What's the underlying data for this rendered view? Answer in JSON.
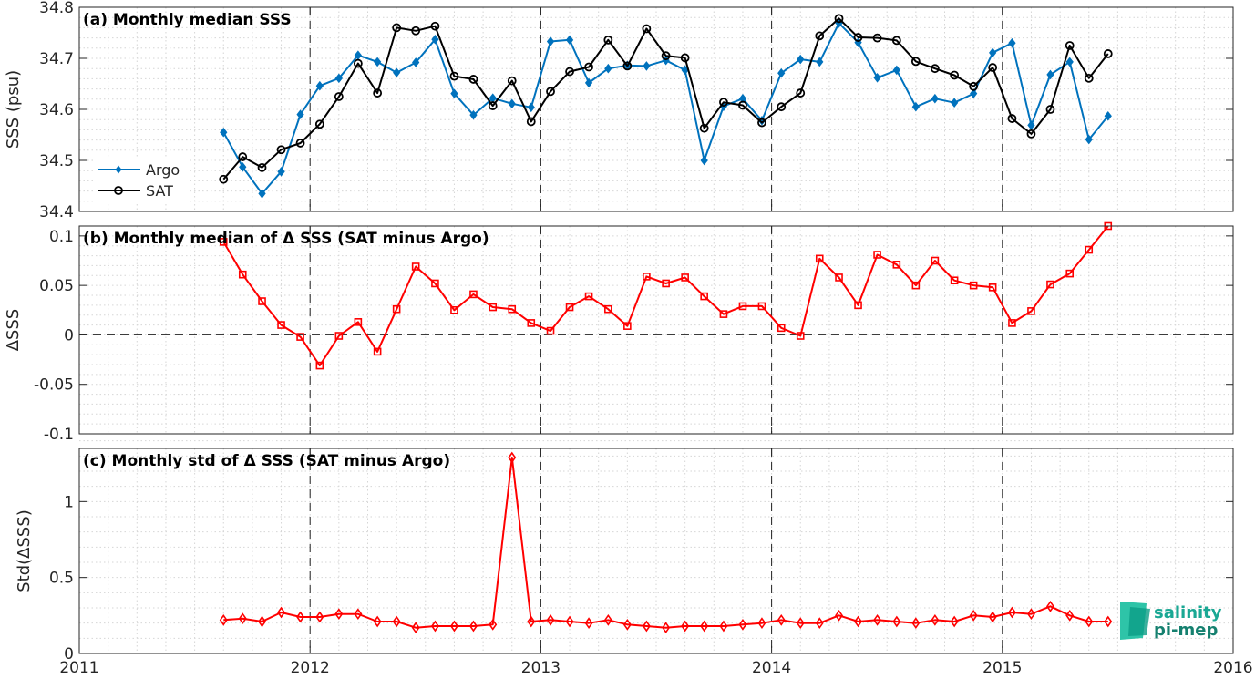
{
  "chart_data": [
    {
      "type": "line",
      "title": "(a) Monthly median SSS",
      "ylabel": "SSS (psu)",
      "xlim": [
        2011,
        2016
      ],
      "ylim": [
        34.4,
        34.8
      ],
      "xticks": [
        "2011",
        "2012",
        "2013",
        "2014",
        "2015",
        "2016"
      ],
      "yticks": [
        "34.4",
        "34.5",
        "34.6",
        "34.7",
        "34.8"
      ],
      "legend": "left",
      "grid": "dotted",
      "series": [
        {
          "name": "Argo",
          "color": "#0072bd",
          "marker": "diamond",
          "x": [
            2011.625,
            2011.708,
            2011.792,
            2011.875,
            2011.958,
            2012.042,
            2012.125,
            2012.208,
            2012.292,
            2012.375,
            2012.458,
            2012.542,
            2012.625,
            2012.708,
            2012.792,
            2012.875,
            2012.958,
            2013.042,
            2013.125,
            2013.208,
            2013.292,
            2013.375,
            2013.458,
            2013.542,
            2013.625,
            2013.708,
            2013.792,
            2013.875,
            2013.958,
            2014.042,
            2014.125,
            2014.208,
            2014.292,
            2014.375,
            2014.458,
            2014.542,
            2014.625,
            2014.708,
            2014.792,
            2014.875,
            2014.958,
            2015.042,
            2015.125,
            2015.208,
            2015.292,
            2015.375,
            2015.458
          ],
          "values": [
            34.555,
            34.487,
            34.435,
            34.478,
            34.59,
            34.646,
            34.661,
            34.706,
            34.693,
            34.672,
            34.692,
            34.737,
            34.631,
            34.589,
            34.622,
            34.611,
            34.604,
            34.733,
            34.736,
            34.652,
            34.68,
            34.686,
            34.685,
            34.696,
            34.677,
            34.5,
            34.606,
            34.621,
            34.578,
            34.671,
            34.698,
            34.693,
            34.769,
            34.731,
            34.662,
            34.677,
            34.605,
            34.621,
            34.613,
            34.631,
            34.711,
            34.73,
            34.569,
            34.668,
            34.693,
            34.541,
            34.587
          ]
        },
        {
          "name": "SAT",
          "color": "#000000",
          "marker": "circle",
          "x": [
            2011.625,
            2011.708,
            2011.792,
            2011.875,
            2011.958,
            2012.042,
            2012.125,
            2012.208,
            2012.292,
            2012.375,
            2012.458,
            2012.542,
            2012.625,
            2012.708,
            2012.792,
            2012.875,
            2012.958,
            2013.042,
            2013.125,
            2013.208,
            2013.292,
            2013.375,
            2013.458,
            2013.542,
            2013.625,
            2013.708,
            2013.792,
            2013.875,
            2013.958,
            2014.042,
            2014.125,
            2014.208,
            2014.292,
            2014.375,
            2014.458,
            2014.542,
            2014.625,
            2014.708,
            2014.792,
            2014.875,
            2014.958,
            2015.042,
            2015.125,
            2015.208,
            2015.292,
            2015.375,
            2015.458
          ],
          "values": [
            34.463,
            34.507,
            34.486,
            34.521,
            34.534,
            34.571,
            34.625,
            34.69,
            34.632,
            34.76,
            34.754,
            34.763,
            34.665,
            34.659,
            34.607,
            34.656,
            34.576,
            34.635,
            34.674,
            34.683,
            34.736,
            34.685,
            34.758,
            34.705,
            34.701,
            34.563,
            34.614,
            34.608,
            34.574,
            34.605,
            34.632,
            34.744,
            34.778,
            34.741,
            34.74,
            34.735,
            34.694,
            34.68,
            34.667,
            34.645,
            34.682,
            34.582,
            34.552,
            34.6,
            34.725,
            34.661,
            34.709
          ]
        }
      ]
    },
    {
      "type": "line",
      "title": "(b) Monthly median of Δ SSS (SAT minus Argo)",
      "ylabel": "ΔSSS",
      "xlim": [
        2011,
        2016
      ],
      "ylim": [
        -0.1,
        0.11
      ],
      "xticks": [
        "2011",
        "2012",
        "2013",
        "2014",
        "2015",
        "2016"
      ],
      "yticks": [
        "-0.1",
        "-0.05",
        "0",
        "0.05",
        "0.1"
      ],
      "reference_line": 0,
      "grid": "dotted",
      "series": [
        {
          "color": "#ff0000",
          "marker": "square",
          "x": [
            2011.625,
            2011.708,
            2011.792,
            2011.875,
            2011.958,
            2012.042,
            2012.125,
            2012.208,
            2012.292,
            2012.375,
            2012.458,
            2012.542,
            2012.625,
            2012.708,
            2012.792,
            2012.875,
            2012.958,
            2013.042,
            2013.125,
            2013.208,
            2013.292,
            2013.375,
            2013.458,
            2013.542,
            2013.625,
            2013.708,
            2013.792,
            2013.875,
            2013.958,
            2014.042,
            2014.125,
            2014.208,
            2014.292,
            2014.375,
            2014.458,
            2014.542,
            2014.625,
            2014.708,
            2014.792,
            2014.875,
            2014.958,
            2015.042,
            2015.125,
            2015.208,
            2015.292,
            2015.375,
            2015.458
          ],
          "values": [
            0.094,
            0.061,
            0.034,
            0.01,
            -0.002,
            -0.031,
            -0.001,
            0.013,
            -0.017,
            0.026,
            0.069,
            0.052,
            0.025,
            0.041,
            0.028,
            0.026,
            0.012,
            0.004,
            0.028,
            0.039,
            0.026,
            0.009,
            0.059,
            0.052,
            0.058,
            0.039,
            0.021,
            0.029,
            0.029,
            0.007,
            -0.001,
            0.077,
            0.058,
            0.03,
            0.081,
            0.071,
            0.05,
            0.075,
            0.055,
            0.05,
            0.048,
            0.012,
            0.024,
            0.051,
            0.062,
            0.086,
            0.111
          ]
        }
      ]
    },
    {
      "type": "line",
      "title": "(c) Monthly std of Δ SSS (SAT minus Argo)",
      "ylabel": "Std(ΔSSS)",
      "xlim": [
        2011,
        2016
      ],
      "ylim": [
        0,
        1.35
      ],
      "xticks": [
        "2011",
        "2012",
        "2013",
        "2014",
        "2015",
        "2016"
      ],
      "yticks": [
        "0",
        "0.5",
        "1"
      ],
      "grid": "dotted",
      "series": [
        {
          "color": "#ff0000",
          "marker": "diamond",
          "x": [
            2011.625,
            2011.708,
            2011.792,
            2011.875,
            2011.958,
            2012.042,
            2012.125,
            2012.208,
            2012.292,
            2012.375,
            2012.458,
            2012.542,
            2012.625,
            2012.708,
            2012.792,
            2012.875,
            2012.958,
            2013.042,
            2013.125,
            2013.208,
            2013.292,
            2013.375,
            2013.458,
            2013.542,
            2013.625,
            2013.708,
            2013.792,
            2013.875,
            2013.958,
            2014.042,
            2014.125,
            2014.208,
            2014.292,
            2014.375,
            2014.458,
            2014.542,
            2014.625,
            2014.708,
            2014.792,
            2014.875,
            2014.958,
            2015.042,
            2015.125,
            2015.208,
            2015.292,
            2015.375,
            2015.458
          ],
          "values": [
            0.22,
            0.23,
            0.21,
            0.27,
            0.24,
            0.24,
            0.26,
            0.26,
            0.21,
            0.21,
            0.17,
            0.18,
            0.18,
            0.18,
            0.19,
            1.29,
            0.21,
            0.22,
            0.21,
            0.2,
            0.22,
            0.19,
            0.18,
            0.17,
            0.18,
            0.18,
            0.18,
            0.19,
            0.2,
            0.22,
            0.2,
            0.2,
            0.25,
            0.21,
            0.22,
            0.21,
            0.2,
            0.22,
            0.21,
            0.25,
            0.24,
            0.27,
            0.26,
            0.31,
            0.25,
            0.21,
            0.21
          ]
        }
      ]
    }
  ],
  "logo": {
    "line1": "salinity",
    "line2": "pi-mep",
    "colors": [
      "#0b9e86",
      "#2ec4a8",
      "#15806f"
    ]
  }
}
